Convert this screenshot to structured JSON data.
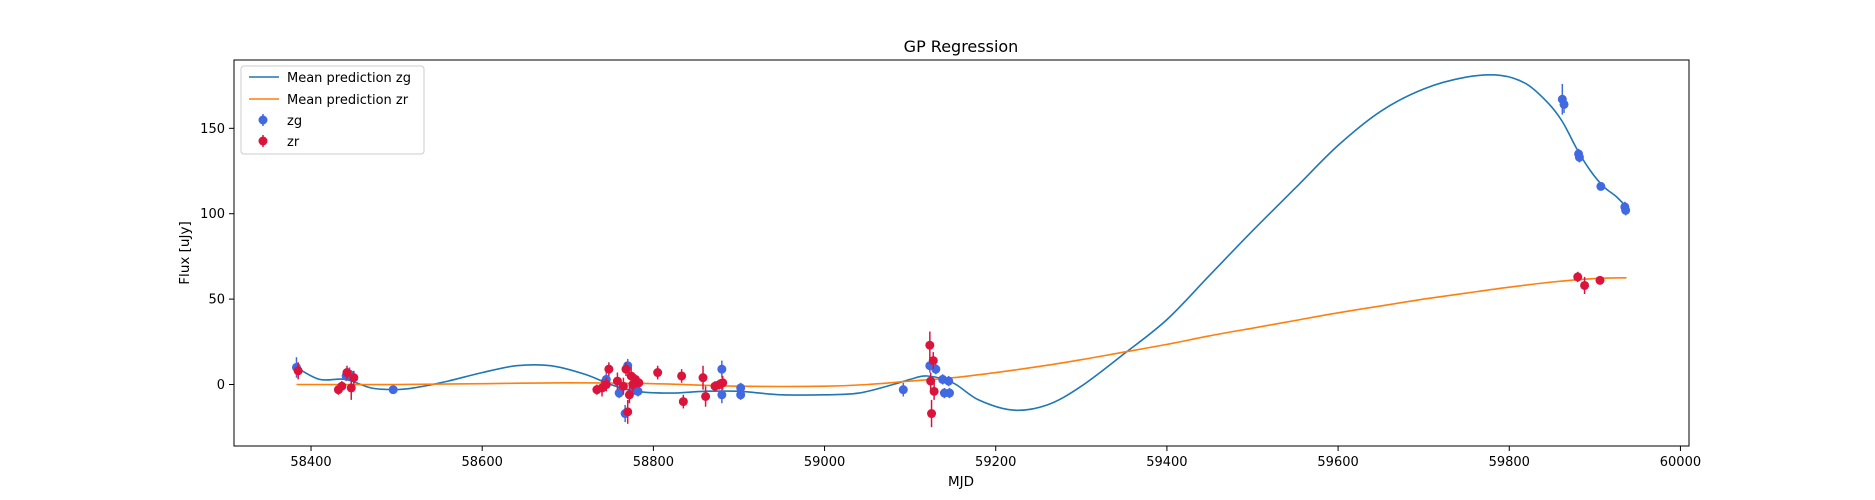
{
  "chart_data": {
    "type": "scatter",
    "title": "GP Regression",
    "xlabel": "MJD",
    "ylabel": "Flux [uJy]",
    "xlim": [
      58310,
      60010
    ],
    "ylim": [
      -36,
      190
    ],
    "xticks": [
      58400,
      58600,
      58800,
      59000,
      59200,
      59400,
      59600,
      59800,
      60000
    ],
    "yticks": [
      0,
      50,
      100,
      150
    ],
    "grid": false,
    "legend_position": "top-left",
    "series": [
      {
        "name": "Mean prediction zg",
        "kind": "line",
        "color": "#1f77b4",
        "x": [
          58383,
          58410,
          58440,
          58470,
          58495,
          58520,
          58560,
          58600,
          58640,
          58680,
          58720,
          58750,
          58780,
          58820,
          58860,
          58900,
          58950,
          59000,
          59040,
          59080,
          59100,
          59120,
          59150,
          59180,
          59220,
          59260,
          59300,
          59350,
          59400,
          59450,
          59500,
          59550,
          59600,
          59650,
          59700,
          59750,
          59790,
          59820,
          59845,
          59862,
          59880,
          59895,
          59910,
          59925,
          59937
        ],
        "y": [
          10,
          3,
          3,
          -2,
          -3,
          -2,
          2,
          7,
          11,
          11,
          6,
          0,
          -4,
          -5,
          -4,
          -4,
          -6,
          -6,
          -5,
          0,
          3,
          5,
          1,
          -9,
          -15,
          -12,
          -1,
          18,
          38,
          64,
          90,
          115,
          140,
          160,
          173,
          180,
          181,
          176,
          165,
          154,
          137,
          125,
          116,
          110,
          104
        ]
      },
      {
        "name": "Mean prediction zr",
        "kind": "line",
        "color": "#ff7f0e",
        "x": [
          58383,
          58500,
          58600,
          58700,
          58800,
          58900,
          59000,
          59050,
          59100,
          59150,
          59200,
          59250,
          59300,
          59350,
          59400,
          59450,
          59500,
          59550,
          59600,
          59650,
          59700,
          59750,
          59800,
          59850,
          59900,
          59937
        ],
        "y": [
          0,
          0,
          0.5,
          1,
          0.5,
          -1,
          -1,
          0,
          2,
          4,
          7,
          10.5,
          14.5,
          19,
          23.5,
          28.5,
          33,
          37.5,
          42,
          46,
          50,
          53.5,
          57,
          60,
          62,
          62.5
        ]
      },
      {
        "name": "zg",
        "kind": "errorbar",
        "color": "#4169e1",
        "points": [
          {
            "x": 58383,
            "y": 10,
            "err": 6
          },
          {
            "x": 58441,
            "y": 5,
            "err": 3
          },
          {
            "x": 58445,
            "y": 6,
            "err": 4
          },
          {
            "x": 58496,
            "y": -3,
            "err": 2
          },
          {
            "x": 58745,
            "y": 3,
            "err": 4
          },
          {
            "x": 58760,
            "y": -5,
            "err": 3
          },
          {
            "x": 58767,
            "y": -17,
            "err": 5
          },
          {
            "x": 58770,
            "y": 11,
            "err": 4
          },
          {
            "x": 58778,
            "y": -3,
            "err": 3
          },
          {
            "x": 58782,
            "y": -4,
            "err": 3
          },
          {
            "x": 58880,
            "y": 9,
            "err": 5
          },
          {
            "x": 58880,
            "y": -6,
            "err": 5
          },
          {
            "x": 58902,
            "y": -2,
            "err": 3
          },
          {
            "x": 58902,
            "y": -6,
            "err": 3
          },
          {
            "x": 59092,
            "y": -3,
            "err": 4
          },
          {
            "x": 59123,
            "y": 11,
            "err": 4
          },
          {
            "x": 59130,
            "y": 9,
            "err": 3
          },
          {
            "x": 59138,
            "y": 3,
            "err": 3
          },
          {
            "x": 59140,
            "y": -5,
            "err": 3
          },
          {
            "x": 59145,
            "y": 2,
            "err": 3
          },
          {
            "x": 59146,
            "y": -5,
            "err": 3
          },
          {
            "x": 59862,
            "y": 167,
            "err": 9
          },
          {
            "x": 59864,
            "y": 164,
            "err": 5
          },
          {
            "x": 59881,
            "y": 135,
            "err": 3
          },
          {
            "x": 59882,
            "y": 133,
            "err": 3
          },
          {
            "x": 59907,
            "y": 116,
            "err": 2
          },
          {
            "x": 59935,
            "y": 104,
            "err": 3
          },
          {
            "x": 59936,
            "y": 102,
            "err": 3
          }
        ]
      },
      {
        "name": "zr",
        "kind": "errorbar",
        "color": "#dc143c",
        "points": [
          {
            "x": 58385,
            "y": 8,
            "err": 5
          },
          {
            "x": 58432,
            "y": -3,
            "err": 3
          },
          {
            "x": 58436,
            "y": -1,
            "err": 3
          },
          {
            "x": 58442,
            "y": 7,
            "err": 4
          },
          {
            "x": 58447,
            "y": -2,
            "err": 7
          },
          {
            "x": 58450,
            "y": 4,
            "err": 4
          },
          {
            "x": 58734,
            "y": -3,
            "err": 3
          },
          {
            "x": 58740,
            "y": -2,
            "err": 5
          },
          {
            "x": 58745,
            "y": 0,
            "err": 4
          },
          {
            "x": 58748,
            "y": 9,
            "err": 4
          },
          {
            "x": 58758,
            "y": 2,
            "err": 5
          },
          {
            "x": 58765,
            "y": -1,
            "err": 5
          },
          {
            "x": 58768,
            "y": 9,
            "err": 4
          },
          {
            "x": 58770,
            "y": -16,
            "err": 7
          },
          {
            "x": 58772,
            "y": -6,
            "err": 5
          },
          {
            "x": 58774,
            "y": 5,
            "err": 5
          },
          {
            "x": 58776,
            "y": 0,
            "err": 4
          },
          {
            "x": 58779,
            "y": 3,
            "err": 3
          },
          {
            "x": 58783,
            "y": 1,
            "err": 3
          },
          {
            "x": 58805,
            "y": 7,
            "err": 4
          },
          {
            "x": 58833,
            "y": 5,
            "err": 4
          },
          {
            "x": 58835,
            "y": -10,
            "err": 4
          },
          {
            "x": 58858,
            "y": 4,
            "err": 7
          },
          {
            "x": 58861,
            "y": -7,
            "err": 6
          },
          {
            "x": 58872,
            "y": -1,
            "err": 3
          },
          {
            "x": 58877,
            "y": 0,
            "err": 3
          },
          {
            "x": 58881,
            "y": 1,
            "err": 4
          },
          {
            "x": 59123,
            "y": 23,
            "err": 8
          },
          {
            "x": 59124,
            "y": 2,
            "err": 5
          },
          {
            "x": 59125,
            "y": -17,
            "err": 8
          },
          {
            "x": 59127,
            "y": 14,
            "err": 5
          },
          {
            "x": 59128,
            "y": -4,
            "err": 5
          },
          {
            "x": 59880,
            "y": 63,
            "err": 3
          },
          {
            "x": 59888,
            "y": 58,
            "err": 5
          },
          {
            "x": 59906,
            "y": 61,
            "err": 2
          }
        ]
      }
    ]
  }
}
